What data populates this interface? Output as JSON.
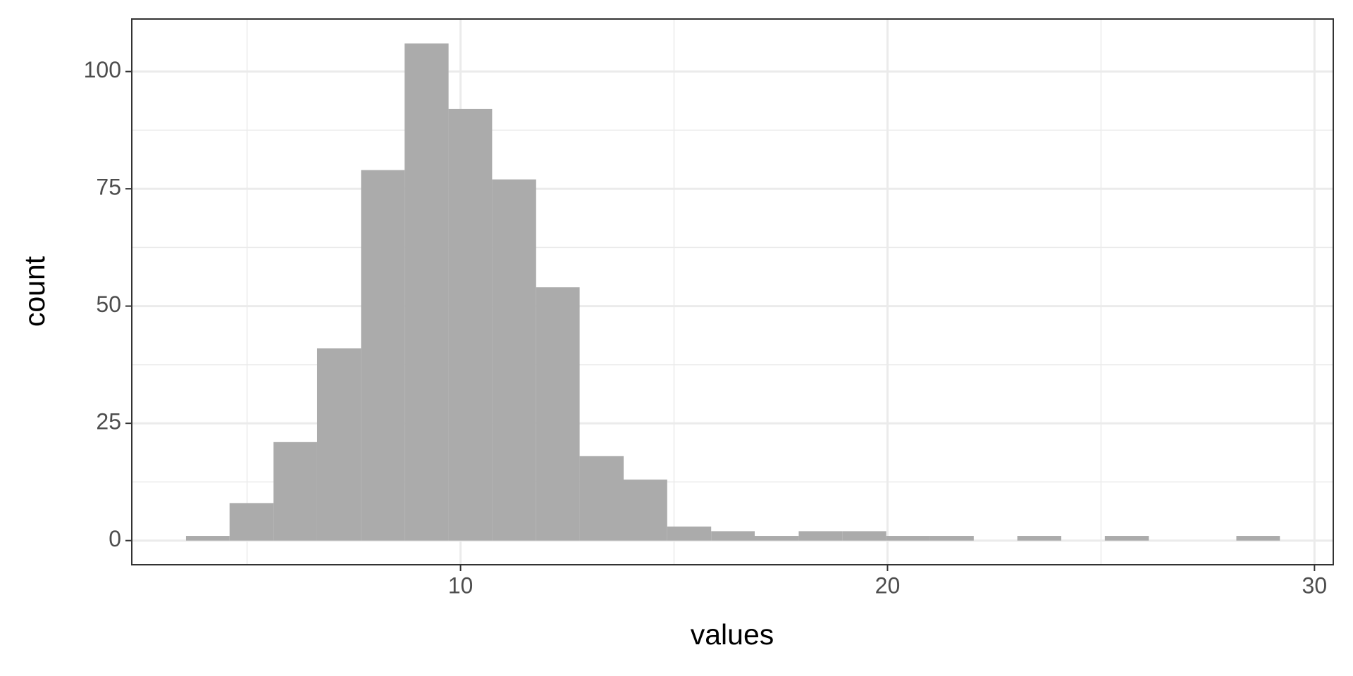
{
  "chart_data": {
    "type": "histogram",
    "x_label": "values",
    "y_label": "count",
    "bins": [
      3.57,
      4.59,
      5.62,
      6.64,
      7.67,
      8.69,
      9.72,
      10.74,
      11.77,
      12.79,
      13.82,
      14.84,
      15.87,
      16.89,
      17.92,
      18.94,
      19.97,
      20.99,
      22.02,
      23.04,
      24.07,
      25.09,
      26.12,
      27.14,
      28.17,
      29.19
    ],
    "counts": [
      1,
      8,
      21,
      41,
      79,
      106,
      92,
      77,
      54,
      18,
      13,
      3,
      2,
      1,
      2,
      2,
      1,
      1,
      0,
      1,
      0,
      1,
      0,
      0,
      1
    ],
    "color": "#ababab",
    "xlim": [
      2.3,
      30.44
    ],
    "ylim": [
      -5.15,
      111.2
    ],
    "xticks": [
      10,
      20,
      30
    ],
    "yticks": [
      0,
      25,
      50,
      75,
      100
    ],
    "x_minor_ticks": [
      5,
      15,
      25
    ],
    "y_minor_ticks": [
      12.5,
      37.5,
      62.5,
      87.5
    ],
    "grid": true
  }
}
